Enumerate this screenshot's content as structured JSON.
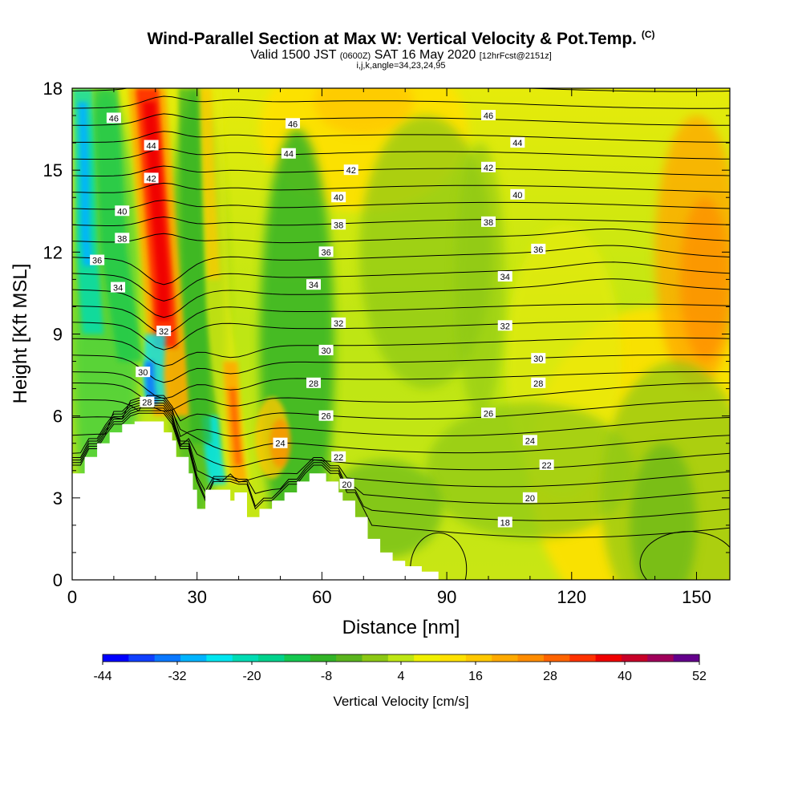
{
  "title": "Wind-Parallel Section at Max W: Vertical Velocity & Pot.Temp.",
  "copyright": "(C)",
  "subtitle_main": "Valid 1500 JST",
  "subtitle_utc": "(0600Z)",
  "subtitle_date": "SAT 16 May 2020",
  "subtitle_fcst": "[12hrFcst@2151z]",
  "subtitle_indices": "i,j,k,angle=34,23,24,95",
  "chart_data": {
    "type": "heatmap",
    "xlabel": "Distance [nm]",
    "ylabel": "Height [Kft MSL]",
    "xlim": [
      0,
      158
    ],
    "ylim": [
      0,
      18
    ],
    "xticks": [
      0,
      30,
      60,
      90,
      120,
      150
    ],
    "yticks": [
      0,
      3,
      6,
      9,
      12,
      15,
      18
    ],
    "colorbar": {
      "title": "Vertical Velocity [cm/s]",
      "tick_labels": [
        "-44",
        "-32",
        "-20",
        "-8",
        "4",
        "16",
        "28",
        "40",
        "52"
      ],
      "colors": [
        "#0000ff",
        "#1040ff",
        "#0a78ff",
        "#00b4ff",
        "#00e6f0",
        "#00dcb4",
        "#00d28c",
        "#14c850",
        "#32b428",
        "#5ab41e",
        "#8cc814",
        "#bee614",
        "#f0f000",
        "#ffe100",
        "#ffc800",
        "#ffaa00",
        "#ff8c00",
        "#ff6400",
        "#ff3200",
        "#f00000",
        "#c80028",
        "#a0005a",
        "#64008c"
      ]
    },
    "terrain_profile": {
      "x": [
        0,
        3,
        3,
        6,
        6,
        9,
        9,
        12,
        12,
        15,
        15,
        22,
        22,
        24,
        24,
        25,
        25,
        28,
        28,
        29,
        29,
        30,
        30,
        32,
        32,
        35,
        35,
        38,
        38,
        39,
        39,
        42,
        42,
        45,
        45,
        48,
        48,
        51,
        51,
        54,
        54,
        57,
        57,
        61,
        61,
        64,
        64,
        65,
        65,
        68,
        68,
        71,
        71,
        74,
        74,
        77,
        77,
        80,
        80,
        84,
        84,
        88,
        88
      ],
      "height": [
        3.9,
        3.9,
        4.5,
        4.5,
        5.0,
        5.0,
        5.4,
        5.4,
        5.7,
        5.7,
        5.8,
        5.8,
        5.4,
        5.4,
        5.1,
        5.1,
        4.5,
        4.5,
        3.9,
        3.9,
        3.3,
        3.3,
        2.6,
        2.6,
        3.3,
        3.3,
        3.3,
        3.3,
        2.9,
        2.9,
        3.2,
        3.2,
        2.3,
        2.3,
        2.6,
        2.6,
        2.9,
        2.9,
        3.2,
        3.2,
        3.6,
        3.6,
        3.9,
        3.9,
        3.6,
        3.6,
        3.2,
        3.2,
        2.9,
        2.9,
        2.3,
        2.3,
        1.5,
        1.5,
        1.0,
        1.0,
        0.7,
        0.7,
        0.5,
        0.5,
        0.3,
        0.3,
        0
      ]
    },
    "updrafts": [
      {
        "x": 20,
        "vmax": 44
      },
      {
        "x": 38,
        "vmax": 30
      },
      {
        "x": 34,
        "vmax": 14
      },
      {
        "x": 6,
        "vmax": -36
      }
    ],
    "theta_labels": [
      {
        "value": "46",
        "x": 10,
        "y": 16.9
      },
      {
        "value": "44",
        "x": 19,
        "y": 15.9
      },
      {
        "value": "42",
        "x": 19,
        "y": 14.7
      },
      {
        "value": "40",
        "x": 12,
        "y": 13.5
      },
      {
        "value": "38",
        "x": 12,
        "y": 12.5
      },
      {
        "value": "36",
        "x": 6,
        "y": 11.7
      },
      {
        "value": "34",
        "x": 11,
        "y": 10.7
      },
      {
        "value": "32",
        "x": 22,
        "y": 9.1
      },
      {
        "value": "30",
        "x": 17,
        "y": 7.6
      },
      {
        "value": "28",
        "x": 18,
        "y": 6.5
      },
      {
        "value": "46",
        "x": 53,
        "y": 16.7
      },
      {
        "value": "44",
        "x": 52,
        "y": 15.6
      },
      {
        "value": "42",
        "x": 67,
        "y": 15.0
      },
      {
        "value": "40",
        "x": 64,
        "y": 14.0
      },
      {
        "value": "38",
        "x": 64,
        "y": 13.0
      },
      {
        "value": "36",
        "x": 61,
        "y": 12.0
      },
      {
        "value": "34",
        "x": 58,
        "y": 10.8
      },
      {
        "value": "32",
        "x": 64,
        "y": 9.4
      },
      {
        "value": "30",
        "x": 61,
        "y": 8.4
      },
      {
        "value": "28",
        "x": 58,
        "y": 7.2
      },
      {
        "value": "26",
        "x": 61,
        "y": 6.0
      },
      {
        "value": "24",
        "x": 50,
        "y": 5.0
      },
      {
        "value": "22",
        "x": 64,
        "y": 4.5
      },
      {
        "value": "20",
        "x": 66,
        "y": 3.5
      },
      {
        "value": "46",
        "x": 100,
        "y": 17.0
      },
      {
        "value": "44",
        "x": 107,
        "y": 16.0
      },
      {
        "value": "42",
        "x": 100,
        "y": 15.1
      },
      {
        "value": "40",
        "x": 107,
        "y": 14.1
      },
      {
        "value": "38",
        "x": 100,
        "y": 13.1
      },
      {
        "value": "36",
        "x": 112,
        "y": 12.1
      },
      {
        "value": "34",
        "x": 104,
        "y": 11.1
      },
      {
        "value": "32",
        "x": 104,
        "y": 9.3
      },
      {
        "value": "30",
        "x": 112,
        "y": 8.1
      },
      {
        "value": "28",
        "x": 112,
        "y": 7.2
      },
      {
        "value": "26",
        "x": 100,
        "y": 6.1
      },
      {
        "value": "24",
        "x": 110,
        "y": 5.1
      },
      {
        "value": "22",
        "x": 114,
        "y": 4.2
      },
      {
        "value": "20",
        "x": 110,
        "y": 3.0
      },
      {
        "value": "18",
        "x": 104,
        "y": 2.1
      }
    ]
  }
}
